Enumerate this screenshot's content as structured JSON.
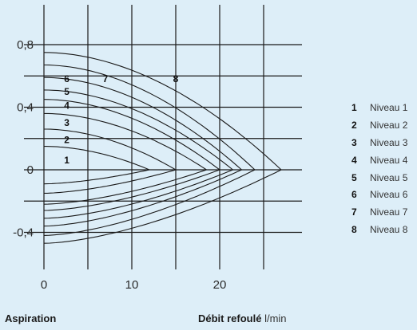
{
  "chart_data": {
    "type": "line",
    "x_ticks": [
      "0",
      "10",
      "20"
    ],
    "y_ticks": [
      "0,8",
      "0,4",
      "0",
      "-0,4"
    ],
    "xlim": [
      0,
      28.5
    ],
    "ylim": [
      -0.57,
      0.97
    ],
    "xlabel_left": "Aspiration",
    "xlabel_right_bold": "Débit refoulé",
    "xlabel_right_unit": "l/min",
    "series_pressure": [
      {
        "name": "1",
        "x_end": 12.0,
        "y_start": 0.15
      },
      {
        "name": "2",
        "x_end": 15.0,
        "y_start": 0.26
      },
      {
        "name": "3",
        "x_end": 18.5,
        "y_start": 0.36
      },
      {
        "name": "4",
        "x_end": 20.0,
        "y_start": 0.45
      },
      {
        "name": "5",
        "x_end": 21.5,
        "y_start": 0.51
      },
      {
        "name": "6",
        "x_end": 22.5,
        "y_start": 0.59
      },
      {
        "name": "7",
        "x_end": 24.0,
        "y_start": 0.67
      },
      {
        "name": "8",
        "x_end": 27.0,
        "y_start": 0.75
      }
    ],
    "series_suction": [
      {
        "name": "1",
        "x_end": 12.0,
        "y_start": -0.09
      },
      {
        "name": "2",
        "x_end": 15.0,
        "y_start": -0.15
      },
      {
        "name": "3",
        "x_end": 18.5,
        "y_start": -0.22
      },
      {
        "name": "4",
        "x_end": 20.0,
        "y_start": -0.26
      },
      {
        "name": "5",
        "x_end": 21.5,
        "y_start": -0.31
      },
      {
        "name": "6",
        "x_end": 22.5,
        "y_start": -0.36
      },
      {
        "name": "7",
        "x_end": 24.0,
        "y_start": -0.42
      },
      {
        "name": "8",
        "x_end": 27.0,
        "y_start": -0.47
      }
    ],
    "level_labels": [
      {
        "text": "1",
        "x": 2.6,
        "y": 0.06
      },
      {
        "text": "2",
        "x": 2.6,
        "y": 0.19
      },
      {
        "text": "3",
        "x": 2.6,
        "y": 0.3
      },
      {
        "text": "4",
        "x": 2.6,
        "y": 0.41
      },
      {
        "text": "5",
        "x": 2.6,
        "y": 0.5
      },
      {
        "text": "6",
        "x": 2.6,
        "y": 0.58
      },
      {
        "text": "7",
        "x": 7.0,
        "y": 0.58
      },
      {
        "text": "8",
        "x": 15.0,
        "y": 0.58
      }
    ],
    "legend": [
      {
        "num": "1",
        "label": "Niveau 1"
      },
      {
        "num": "2",
        "label": "Niveau 2"
      },
      {
        "num": "3",
        "label": "Niveau 3"
      },
      {
        "num": "4",
        "label": "Niveau 4"
      },
      {
        "num": "5",
        "label": "Niveau 5"
      },
      {
        "num": "6",
        "label": "Niveau 6"
      },
      {
        "num": "7",
        "label": "Niveau 7"
      },
      {
        "num": "8",
        "label": "Niveau 8"
      }
    ],
    "legend_placement": "right",
    "grid": true
  }
}
